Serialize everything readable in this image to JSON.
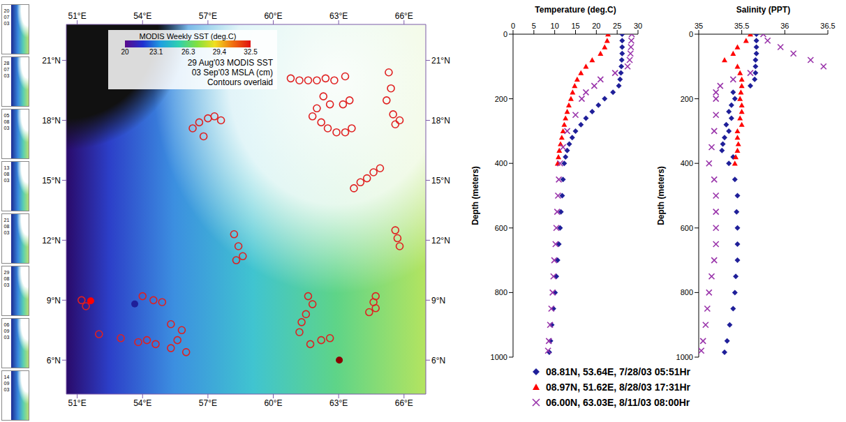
{
  "thumbnail_labels": [
    "20 07 03",
    "28 07 03",
    "05 08 03",
    "13 08 03",
    "21 08 03",
    "29 08 03",
    "06 09 03",
    "14 09 03"
  ],
  "chart_data": [
    {
      "type": "scatter",
      "title": "29 Aug'03 MODIS SST",
      "subtitle": "03 Sep'03 MSLA (cm)",
      "annotations": [
        "Contours overlaid"
      ],
      "colorbar": {
        "label": "MODIS Weekly SST (deg.C)",
        "range": [
          20,
          32.5
        ],
        "ticks": [
          20,
          23.1,
          26.3,
          29.4,
          32.5
        ]
      },
      "xlim": [
        50.5,
        67
      ],
      "xticks": [
        {
          "value": 51,
          "label": "51°E"
        },
        {
          "value": 54,
          "label": "54°E"
        },
        {
          "value": 57,
          "label": "57°E"
        },
        {
          "value": 60,
          "label": "60°E"
        },
        {
          "value": 63,
          "label": "63°E"
        },
        {
          "value": 66,
          "label": "66°E"
        }
      ],
      "ylim": [
        4.3,
        22.8
      ],
      "yticks": [
        {
          "value": 6,
          "label": "6°N"
        },
        {
          "value": 9,
          "label": "9°N"
        },
        {
          "value": 12,
          "label": "12°N"
        },
        {
          "value": 15,
          "label": "15°N"
        },
        {
          "value": 18,
          "label": "18°N"
        },
        {
          "value": 21,
          "label": "21°N"
        }
      ],
      "series": [
        {
          "color": "#e02020",
          "marker": "circle_open",
          "x": [
            60.8,
            61.2,
            61.6,
            62.0,
            62.4,
            62.8,
            63.3,
            62.3,
            62.6,
            62.0,
            61.8,
            62.2,
            62.5,
            62.9,
            63.3,
            63.6,
            63.2,
            63.5,
            65.3,
            65.4,
            65.2,
            65.5,
            65.8,
            65.6,
            56.3,
            56.6,
            57.0,
            57.3,
            57.6,
            56.8,
            63.7,
            64.0,
            64.3,
            64.6,
            64.9,
            58.2,
            58.4,
            58.6,
            58.3,
            54.0,
            54.5,
            54.9,
            51.2,
            51.4,
            52.0,
            53.0,
            53.8,
            54.2,
            54.6,
            55.3,
            55.6,
            55.8,
            55.3,
            56.0,
            61.6,
            61.8,
            61.5,
            61.3,
            61.2,
            62.2,
            62.6,
            61.7,
            64.7,
            64.6,
            64.7,
            64.4,
            65.6,
            65.7,
            65.8
          ],
          "y": [
            20.1,
            20.0,
            20.0,
            20.0,
            20.1,
            20.0,
            20.2,
            19.2,
            18.8,
            18.6,
            18.2,
            17.9,
            17.6,
            17.4,
            17.4,
            17.6,
            18.8,
            19.0,
            20.4,
            19.6,
            19.0,
            18.3,
            18.0,
            17.8,
            17.6,
            17.9,
            18.1,
            18.2,
            18.0,
            17.2,
            14.6,
            14.9,
            15.1,
            15.4,
            15.6,
            12.3,
            11.7,
            11.2,
            11.0,
            9.2,
            9.0,
            8.9,
            9.0,
            8.7,
            7.3,
            7.1,
            6.9,
            7.0,
            6.8,
            6.6,
            7.0,
            7.5,
            7.8,
            6.4,
            9.2,
            8.8,
            8.3,
            7.9,
            7.4,
            7.0,
            7.1,
            6.8,
            9.2,
            8.9,
            8.6,
            8.4,
            12.5,
            12.1,
            11.7
          ]
        },
        {
          "colors": [
            "#ff0000",
            "#1f1f99",
            "#8b0000"
          ],
          "marker": "circle",
          "x": [
            51.62,
            53.64,
            63.03
          ],
          "y": [
            8.97,
            8.81,
            6.0
          ]
        }
      ]
    },
    {
      "type": "scatter",
      "x_label": "Temperature (deg.C)",
      "y_label": "Depth (meters)",
      "xlim": [
        0,
        30
      ],
      "xticks": [
        0,
        5,
        10,
        15,
        20,
        25,
        30
      ],
      "ylim": [
        0,
        1000
      ],
      "yticks": [
        0,
        200,
        400,
        600,
        800,
        1000
      ],
      "legend": "bottom",
      "series": [
        {
          "name": "08.81N, 53.64E, 7/28/03 05:51Hr",
          "color": "#1f1f99",
          "marker": "diamond",
          "x": [
            26.2,
            26.2,
            26.2,
            26.2,
            26.1,
            26.0,
            25.9,
            25.7,
            25.4,
            24.0,
            22.0,
            20.5,
            19.0,
            17.5,
            16.3,
            15.0,
            14.2,
            13.5,
            13.0,
            12.6,
            12.3,
            12.0,
            11.8,
            11.5,
            11.3,
            11.0,
            10.7,
            10.4,
            10.1,
            9.7,
            9.3,
            9.0,
            8.7
          ],
          "y": [
            0,
            20,
            40,
            60,
            80,
            100,
            120,
            140,
            160,
            180,
            200,
            220,
            240,
            260,
            280,
            300,
            320,
            340,
            360,
            380,
            400,
            450,
            500,
            550,
            600,
            650,
            700,
            750,
            800,
            850,
            900,
            950,
            985
          ]
        },
        {
          "name": "08.97N, 51.62E, 8/28/03 17:31Hr",
          "color": "#ff0000",
          "marker": "triangle",
          "x": [
            22.8,
            22.6,
            22.0,
            21.0,
            19.0,
            17.5,
            16.3,
            15.4,
            14.8,
            14.3,
            13.9,
            13.4,
            13.0,
            12.6,
            12.3,
            12.0,
            11.7,
            11.4,
            11.1,
            10.9,
            10.7
          ],
          "y": [
            0,
            20,
            40,
            60,
            80,
            100,
            120,
            140,
            160,
            180,
            200,
            220,
            240,
            260,
            280,
            300,
            320,
            340,
            360,
            380,
            400
          ]
        },
        {
          "name": "06.00N, 63.03E, 8/11/03 08:00Hr",
          "color": "#9933aa",
          "marker": "x",
          "x": [
            28.5,
            28.4,
            28.3,
            28.2,
            28.0,
            27.5,
            24.5,
            21.0,
            19.5,
            17.5,
            16.5,
            15.0,
            13.0,
            12.0,
            11.3,
            11.0,
            10.8,
            10.6,
            10.4,
            10.2,
            9.9,
            9.7,
            9.5,
            9.2,
            8.9,
            8.6,
            8.4
          ],
          "y": [
            0,
            20,
            40,
            60,
            80,
            100,
            120,
            140,
            160,
            180,
            200,
            250,
            300,
            350,
            400,
            450,
            500,
            550,
            600,
            650,
            700,
            750,
            800,
            850,
            900,
            950,
            980
          ]
        }
      ]
    },
    {
      "type": "scatter",
      "x_label": "Salinity (PPT)",
      "y_label": "Depth (meters)",
      "xlim": [
        35,
        36.5
      ],
      "xticks": [
        35,
        35.5,
        36,
        36.5
      ],
      "ylim": [
        0,
        1000
      ],
      "yticks": [
        0,
        200,
        400,
        600,
        800,
        1000
      ],
      "series": [
        {
          "name": "08.81N, 53.64E, 7/28/03 05:51Hr",
          "color": "#1f1f99",
          "marker": "diamond",
          "x": [
            35.67,
            35.67,
            35.67,
            35.67,
            35.66,
            35.66,
            35.66,
            35.65,
            35.6,
            35.4,
            35.42,
            35.38,
            35.35,
            35.38,
            35.32,
            35.35,
            35.3,
            35.28,
            35.27,
            35.4,
            35.35,
            35.42,
            35.45,
            35.44,
            35.45,
            35.45,
            35.45,
            35.43,
            35.42,
            35.4,
            35.36,
            35.33,
            35.3
          ],
          "y": [
            0,
            20,
            40,
            60,
            80,
            100,
            120,
            140,
            160,
            180,
            200,
            220,
            240,
            260,
            280,
            300,
            320,
            340,
            360,
            380,
            400,
            450,
            500,
            550,
            600,
            650,
            700,
            750,
            800,
            850,
            900,
            950,
            985
          ]
        },
        {
          "name": "08.97N, 51.62E, 8/28/03 17:31Hr",
          "color": "#ff0000",
          "marker": "triangle",
          "x": [
            35.6,
            35.55,
            35.45,
            35.4,
            35.3,
            35.45,
            35.48,
            35.5,
            35.5,
            35.49,
            35.48,
            35.5,
            35.5,
            35.48,
            35.5,
            35.45,
            35.45,
            35.46,
            35.45,
            35.43,
            35.42
          ],
          "y": [
            0,
            20,
            40,
            60,
            80,
            100,
            120,
            140,
            160,
            180,
            200,
            220,
            240,
            260,
            280,
            300,
            320,
            340,
            360,
            380,
            400
          ]
        },
        {
          "name": "06.00N, 63.03E, 8/11/03 08:00Hr",
          "color": "#9933aa",
          "marker": "x",
          "x": [
            35.75,
            35.8,
            35.95,
            36.1,
            36.3,
            36.45,
            35.6,
            35.4,
            35.25,
            35.2,
            35.2,
            35.2,
            35.18,
            35.15,
            35.12,
            35.18,
            35.2,
            35.2,
            35.2,
            35.2,
            35.18,
            35.15,
            35.12,
            35.1,
            35.08,
            35.05,
            35.03
          ],
          "y": [
            0,
            20,
            40,
            60,
            80,
            100,
            120,
            140,
            160,
            180,
            200,
            250,
            300,
            350,
            400,
            450,
            500,
            550,
            600,
            650,
            700,
            750,
            800,
            850,
            900,
            950,
            980
          ]
        }
      ]
    }
  ]
}
